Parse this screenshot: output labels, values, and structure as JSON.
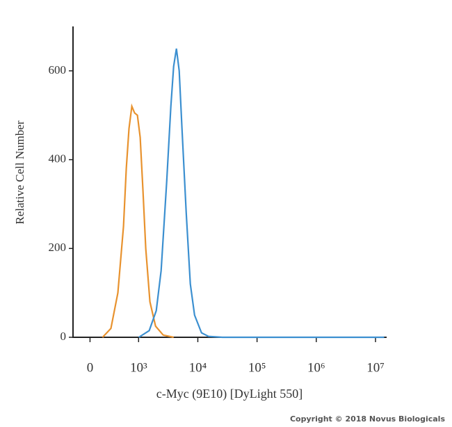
{
  "chart_data": {
    "type": "line",
    "x_label": "c-Myc (9E10) [DyLight 550]",
    "y_label": "Relative Cell Number",
    "xscale": "biexponential",
    "xlim": [
      -350,
      15000000
    ],
    "xticks": [
      0,
      {
        "value": 1000,
        "label": "10³"
      },
      {
        "value": 10000,
        "label": "10⁴"
      },
      {
        "value": 100000,
        "label": "10⁵"
      },
      {
        "value": 1000000,
        "label": "10⁶"
      },
      {
        "value": 10000000,
        "label": "10⁷"
      }
    ],
    "ylim": [
      0,
      700
    ],
    "yticks": [
      0,
      200,
      400,
      600
    ],
    "series": [
      {
        "color": "#e8922e",
        "x": [
          258,
          430,
          574,
          689,
          746,
          803,
          861,
          918,
          976,
          1064,
          1186,
          1321,
          1556,
          1932,
          2602,
          3908
        ],
        "values": [
          0,
          20,
          100,
          250,
          380,
          470,
          520,
          505,
          500,
          450,
          330,
          200,
          80,
          25,
          5,
          0
        ]
      },
      {
        "color": "#3b8fd0",
        "x": [
          1009,
          1514,
          1986,
          2399,
          2979,
          3508,
          3908,
          4355,
          4853,
          5408,
          6368,
          7482,
          8810,
          11535,
          15136,
          26002,
          14000000
        ],
        "values": [
          0,
          15,
          60,
          150,
          350,
          520,
          610,
          650,
          600,
          470,
          280,
          120,
          50,
          10,
          2,
          0,
          0
        ]
      }
    ],
    "copyright": "Copyright © 2018 Novus Biologicals"
  }
}
